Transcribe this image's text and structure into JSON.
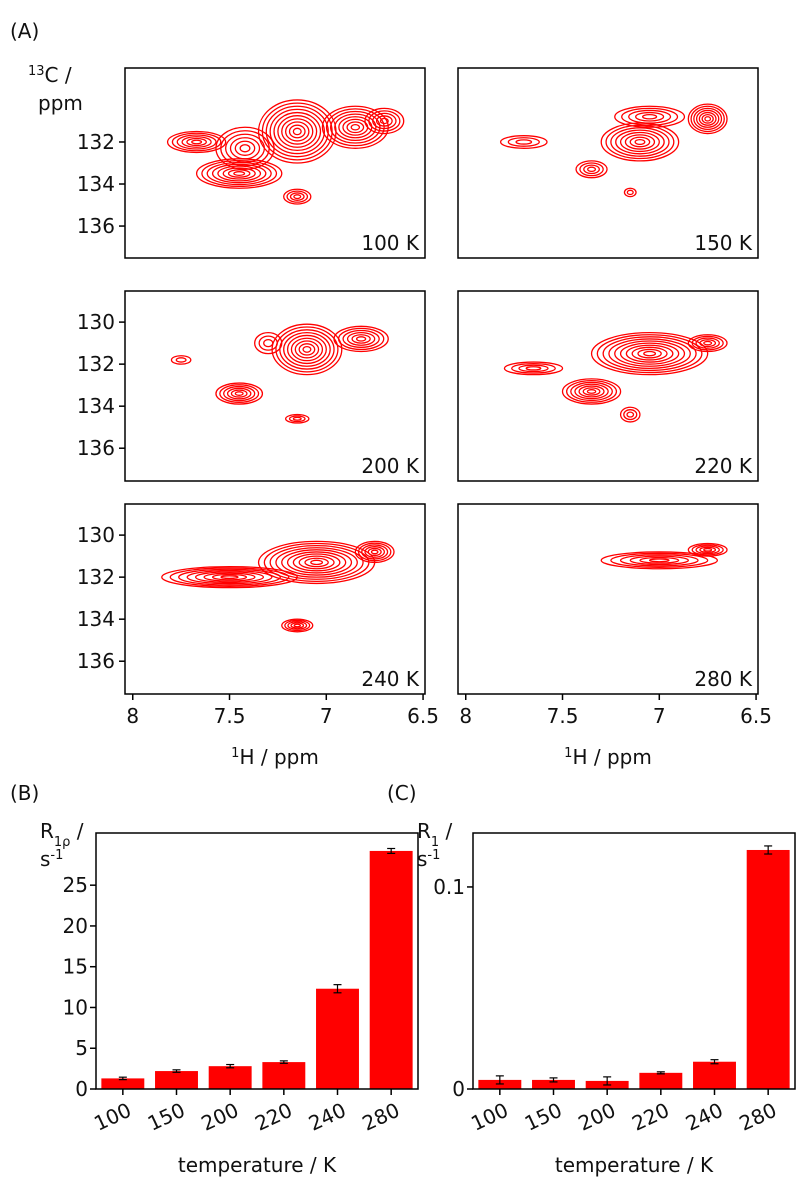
{
  "chart_data": [
    {
      "type": "contour",
      "panel_label": "(A)",
      "annotation": "100 K",
      "xlim": [
        8.04,
        6.49
      ],
      "ylim": [
        128.48,
        137.52
      ],
      "yticks": [
        132,
        134,
        136
      ],
      "y_label": [
        {
          "sup": "13"
        },
        {
          "text": "C /"
        }
      ],
      "y_label_line2": [
        {
          "text": "ppm"
        }
      ]
    },
    {
      "type": "contour",
      "annotation": "150 K",
      "xlim": [
        8.04,
        6.49
      ],
      "ylim": [
        128.48,
        137.52
      ]
    },
    {
      "type": "contour",
      "annotation": "200 K",
      "xlim": [
        8.04,
        6.49
      ],
      "ylim": [
        128.52,
        137.56
      ],
      "yticks": [
        130,
        132,
        134,
        136
      ]
    },
    {
      "type": "contour",
      "annotation": "220 K",
      "xlim": [
        8.04,
        6.49
      ],
      "ylim": [
        128.52,
        137.56
      ]
    },
    {
      "type": "contour",
      "annotation": "240 K",
      "xlim": [
        8.04,
        6.49
      ],
      "ylim": [
        128.52,
        137.56
      ],
      "yticks": [
        130,
        132,
        134,
        136
      ],
      "xticks": [
        8,
        7.5,
        7,
        6.5
      ],
      "x_label": [
        {
          "sup": "1"
        },
        {
          "text": "H / ppm"
        }
      ]
    },
    {
      "type": "contour",
      "annotation": "280 K",
      "xlim": [
        8.04,
        6.49
      ],
      "ylim": [
        128.52,
        137.56
      ],
      "xticks": [
        8,
        7.5,
        7,
        6.5
      ],
      "x_label": [
        {
          "sup": "1"
        },
        {
          "text": "H / ppm"
        }
      ]
    },
    {
      "type": "bar",
      "panel_label": "(B)",
      "categories": [
        "100",
        "150",
        "200",
        "220",
        "240",
        "280"
      ],
      "series": [
        {
          "color": "#ff0000",
          "values": [
            1.3,
            2.2,
            2.8,
            3.3,
            12.3,
            29.2
          ],
          "errors": [
            0.15,
            0.15,
            0.2,
            0.15,
            0.5,
            0.3
          ]
        }
      ],
      "ylim": [
        0,
        31.4
      ],
      "yticks": [
        0,
        5,
        10,
        15,
        20,
        25
      ],
      "y_label": [
        {
          "text": "R"
        },
        {
          "sub": "1ρ"
        },
        {
          "text": " /"
        }
      ],
      "y_label_line2": [
        {
          "text": "s"
        },
        {
          "sup": "-1"
        }
      ],
      "x_label": [
        {
          "text": "temperature / K"
        }
      ]
    },
    {
      "type": "bar",
      "panel_label": "(C)",
      "categories": [
        "100",
        "150",
        "200",
        "220",
        "240",
        "280"
      ],
      "series": [
        {
          "color": "#ff0000",
          "values": [
            0.0045,
            0.0045,
            0.004,
            0.008,
            0.0135,
            0.1183
          ],
          "errors": [
            0.002,
            0.001,
            0.002,
            0.0005,
            0.001,
            0.002
          ]
        }
      ],
      "ylim": [
        0,
        0.1267
      ],
      "yticks": [
        0,
        0.1
      ],
      "y_label": [
        {
          "text": "R"
        },
        {
          "sub": "1"
        },
        {
          "text": " /"
        }
      ],
      "y_label_line2": [
        {
          "text": "s"
        },
        {
          "sup": "-1"
        }
      ],
      "x_label": [
        {
          "text": "temperature / K"
        }
      ]
    }
  ]
}
